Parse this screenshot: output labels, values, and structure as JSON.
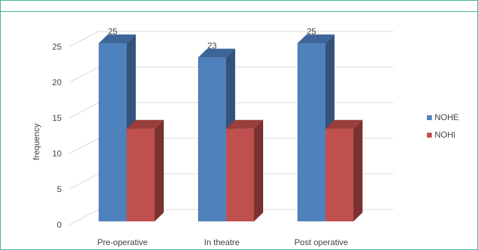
{
  "chart_data": {
    "type": "bar",
    "categories": [
      "Pre-operative",
      "In theatre",
      "Post operative"
    ],
    "series": [
      {
        "name": "NOHE",
        "values": [
          25,
          23,
          25
        ],
        "color": "#4f81bd",
        "side_color": "#34537c",
        "top_color": "#3d6597"
      },
      {
        "name": "NOHI",
        "values": [
          13,
          13,
          13
        ],
        "color": "#c0504d",
        "side_color": "#7a3230",
        "top_color": "#9a3e3b"
      }
    ],
    "data_labels": [
      [
        "25",
        "23",
        "25"
      ],
      []
    ],
    "title": "",
    "xlabel": "",
    "ylabel": "frequency",
    "ylim": [
      0,
      25
    ],
    "yticks": [
      0,
      5,
      10,
      15,
      20,
      25
    ],
    "grid": true,
    "legend": "right",
    "style": "3d-clustered-column"
  }
}
